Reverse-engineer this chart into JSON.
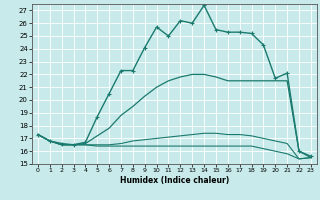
{
  "xlabel": "Humidex (Indice chaleur)",
  "xlim": [
    -0.5,
    23.5
  ],
  "ylim": [
    15,
    27.5
  ],
  "yticks": [
    15,
    16,
    17,
    18,
    19,
    20,
    21,
    22,
    23,
    24,
    25,
    26,
    27
  ],
  "xticks": [
    0,
    1,
    2,
    3,
    4,
    5,
    6,
    7,
    8,
    9,
    10,
    11,
    12,
    13,
    14,
    15,
    16,
    17,
    18,
    19,
    20,
    21,
    22,
    23
  ],
  "line_color": "#1a7a6e",
  "bg_color": "#c8eaea",
  "grid_color": "#b0d8d8",
  "lines": [
    {
      "x": [
        0,
        1,
        2,
        3,
        4,
        5,
        6,
        7,
        8,
        9,
        10,
        11,
        12,
        13,
        14,
        15,
        16,
        17,
        18,
        19,
        20,
        21,
        22,
        23
      ],
      "y": [
        17.3,
        16.8,
        16.5,
        16.5,
        16.5,
        16.4,
        16.4,
        16.4,
        16.4,
        16.4,
        16.4,
        16.4,
        16.4,
        16.4,
        16.4,
        16.4,
        16.4,
        16.4,
        16.4,
        16.2,
        16.0,
        15.8,
        15.4,
        15.5
      ],
      "marker": null,
      "lw": 0.8
    },
    {
      "x": [
        0,
        1,
        2,
        3,
        4,
        5,
        6,
        7,
        8,
        9,
        10,
        11,
        12,
        13,
        14,
        15,
        16,
        17,
        18,
        19,
        20,
        21,
        22,
        23
      ],
      "y": [
        17.3,
        16.8,
        16.5,
        16.5,
        16.5,
        16.5,
        16.5,
        16.6,
        16.8,
        16.9,
        17.0,
        17.1,
        17.2,
        17.3,
        17.4,
        17.4,
        17.3,
        17.3,
        17.2,
        17.0,
        16.8,
        16.6,
        15.4,
        15.5
      ],
      "marker": null,
      "lw": 0.8
    },
    {
      "x": [
        0,
        1,
        2,
        3,
        4,
        5,
        6,
        7,
        8,
        9,
        10,
        11,
        12,
        13,
        14,
        15,
        16,
        17,
        18,
        19,
        20,
        21,
        22,
        23
      ],
      "y": [
        17.3,
        16.8,
        16.5,
        16.5,
        16.6,
        17.2,
        17.8,
        18.8,
        19.5,
        20.3,
        21.0,
        21.5,
        21.8,
        22.0,
        22.0,
        21.8,
        21.5,
        21.5,
        21.5,
        21.5,
        21.5,
        21.5,
        16.0,
        15.5
      ],
      "marker": null,
      "lw": 0.9
    },
    {
      "x": [
        0,
        1,
        2,
        3,
        4,
        5,
        6,
        7,
        8,
        9,
        10,
        11,
        12,
        13,
        14,
        15,
        16,
        17,
        18,
        19,
        20,
        21,
        22,
        23
      ],
      "y": [
        17.3,
        16.8,
        16.6,
        16.5,
        16.7,
        18.7,
        20.5,
        22.3,
        22.3,
        24.1,
        25.7,
        25.0,
        26.2,
        26.0,
        27.4,
        25.5,
        25.3,
        25.3,
        25.2,
        24.3,
        21.7,
        22.1,
        16.0,
        15.6
      ],
      "marker": "+",
      "lw": 1.0,
      "ms": 3.5
    }
  ]
}
